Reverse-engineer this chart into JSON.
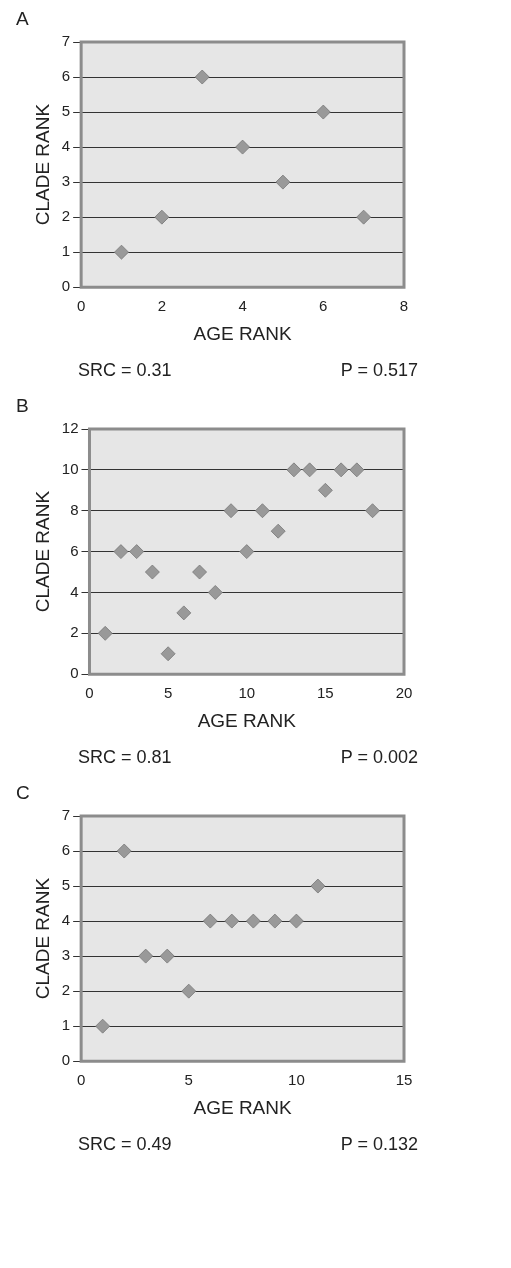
{
  "chart_data": [
    {
      "type": "scatter",
      "title": "A",
      "xlabel": "AGE RANK",
      "ylabel": "CLADE RANK",
      "x": [
        1,
        2,
        3,
        4,
        5,
        6,
        7
      ],
      "series": [
        {
          "color": "#999999",
          "values": [
            1,
            2,
            6,
            4,
            3,
            5,
            2
          ]
        }
      ],
      "xlim": [
        0,
        8
      ],
      "xticks": [
        0,
        2,
        4,
        6,
        8
      ],
      "ylim": [
        0,
        7
      ],
      "yticks": [
        0,
        1,
        2,
        3,
        4,
        5,
        6,
        7
      ],
      "grid": "y",
      "legend": false,
      "marker": "diamond",
      "annotations": [
        "SRC = 0.31",
        "P = 0.517"
      ]
    },
    {
      "type": "scatter",
      "title": "B",
      "xlabel": "AGE RANK",
      "ylabel": "CLADE RANK",
      "x": [
        1,
        2,
        3,
        4,
        5,
        6,
        7,
        8,
        9,
        10,
        11,
        12,
        13,
        14,
        15,
        16,
        17,
        18
      ],
      "series": [
        {
          "color": "#999999",
          "values": [
            2,
            6,
            6,
            5,
            1,
            3,
            5,
            4,
            8,
            6,
            8,
            7,
            10,
            10,
            9,
            10,
            10,
            8
          ]
        }
      ],
      "xlim": [
        0,
        20
      ],
      "xticks": [
        0,
        5,
        10,
        15,
        20
      ],
      "ylim": [
        0,
        12
      ],
      "yticks": [
        0,
        2,
        4,
        6,
        8,
        10,
        12
      ],
      "grid": "y",
      "legend": false,
      "marker": "diamond",
      "annotations": [
        "SRC = 0.81",
        "P = 0.002"
      ]
    },
    {
      "type": "scatter",
      "title": "C",
      "xlabel": "AGE RANK",
      "ylabel": "CLADE RANK",
      "x": [
        1,
        2,
        3,
        4,
        5,
        6,
        7,
        8,
        9,
        10,
        11
      ],
      "series": [
        {
          "color": "#999999",
          "values": [
            1,
            6,
            3,
            3,
            2,
            4,
            4,
            4,
            4,
            4,
            5
          ]
        }
      ],
      "xlim": [
        0,
        15
      ],
      "xticks": [
        0,
        5,
        10,
        15
      ],
      "ylim": [
        0,
        7
      ],
      "yticks": [
        0,
        1,
        2,
        3,
        4,
        5,
        6,
        7
      ],
      "grid": "y",
      "legend": false,
      "marker": "diamond",
      "annotations": [
        "SRC = 0.49",
        "P = 0.132"
      ]
    }
  ]
}
